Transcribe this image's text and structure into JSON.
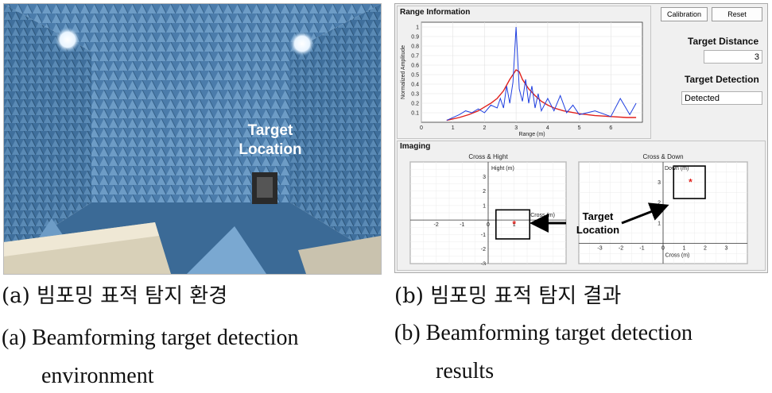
{
  "photo": {
    "annotation_line1": "Target",
    "annotation_line2": "Location"
  },
  "results": {
    "range_panel_title": "Range Information",
    "calibration_button": "Calibration",
    "reset_button": "Reset",
    "target_distance_label": "Target Distance",
    "target_distance_value": "3",
    "target_detection_label": "Target Detection",
    "target_detection_value": "Detected",
    "imaging_panel_title": "Imaging",
    "annotation_line1": "Target",
    "annotation_line2": "Location"
  },
  "chart_data": [
    {
      "type": "line",
      "xlabel": "Range (m)",
      "ylabel": "Normalized Amplitude",
      "xlim": [
        0,
        7
      ],
      "ylim": [
        0,
        1.05
      ],
      "xticks": [
        0,
        1,
        2,
        3,
        4,
        5,
        6
      ],
      "yticks": [
        0.1,
        0.2,
        0.3,
        0.4,
        0.5,
        0.6,
        0.7,
        0.8,
        0.9,
        1
      ],
      "series": [
        {
          "color": "#e0201b",
          "x": [
            0.8,
            1.2,
            1.5,
            1.8,
            2.0,
            2.2,
            2.4,
            2.6,
            2.8,
            2.9,
            3.0,
            3.1,
            3.2,
            3.4,
            3.6,
            3.8,
            4.0,
            4.2,
            4.5,
            5.0,
            5.5,
            6.0,
            6.5,
            6.8
          ],
          "y": [
            0.02,
            0.05,
            0.08,
            0.12,
            0.16,
            0.2,
            0.25,
            0.33,
            0.45,
            0.5,
            0.55,
            0.53,
            0.45,
            0.35,
            0.28,
            0.22,
            0.18,
            0.15,
            0.12,
            0.09,
            0.07,
            0.06,
            0.05,
            0.05
          ]
        },
        {
          "color": "#1f3fe0",
          "x": [
            0.8,
            1.2,
            1.4,
            1.6,
            1.8,
            2.0,
            2.2,
            2.4,
            2.5,
            2.6,
            2.7,
            2.8,
            2.9,
            3.0,
            3.1,
            3.2,
            3.3,
            3.4,
            3.5,
            3.6,
            3.7,
            3.8,
            4.0,
            4.2,
            4.4,
            4.6,
            4.8,
            5.0,
            5.5,
            6.0,
            6.3,
            6.6,
            6.8
          ],
          "y": [
            0.02,
            0.08,
            0.12,
            0.1,
            0.14,
            0.1,
            0.18,
            0.15,
            0.25,
            0.15,
            0.38,
            0.2,
            0.42,
            1.0,
            0.35,
            0.22,
            0.45,
            0.2,
            0.38,
            0.15,
            0.3,
            0.12,
            0.25,
            0.12,
            0.28,
            0.1,
            0.18,
            0.08,
            0.12,
            0.06,
            0.25,
            0.08,
            0.2
          ]
        }
      ]
    },
    {
      "type": "scatter",
      "title": "Cross & Hight",
      "xlabel": "Cross (m)",
      "ylabel": "Hight (m)",
      "xlim": [
        -3,
        3
      ],
      "ylim": [
        -3,
        4
      ],
      "xticks": [
        -2,
        -1,
        0,
        1
      ],
      "yticks": [
        -3,
        -2,
        -1,
        1,
        2,
        3
      ],
      "points": [
        {
          "x": 1,
          "y": -0.3
        }
      ],
      "box": {
        "x0": 0.3,
        "x1": 1.6,
        "y0": -1.3,
        "y1": 0.7
      }
    },
    {
      "type": "scatter",
      "title": "Cross & Down",
      "xlabel": "Cross (m)",
      "ylabel": "Down (m)",
      "xlim": [
        -4,
        4
      ],
      "ylim": [
        -1,
        4
      ],
      "xticks": [
        -3,
        -2,
        -1,
        0,
        1,
        2,
        3
      ],
      "yticks": [
        1,
        2,
        3
      ],
      "points": [
        {
          "x": 1.3,
          "y": 3.0
        }
      ],
      "box": {
        "x0": 0.5,
        "x1": 2.0,
        "y0": 2.2,
        "y1": 3.8
      }
    }
  ],
  "captions": {
    "left_korean": "(a) 빔포밍 표적 탐지 환경",
    "left_english_line1": "(a)  Beamforming target detection",
    "left_english_line2": "environment",
    "right_korean": "(b) 빔포밍 표적 탐지 결과",
    "right_english_line1": "(b)  Beamforming target detection",
    "right_english_line2": "results"
  }
}
